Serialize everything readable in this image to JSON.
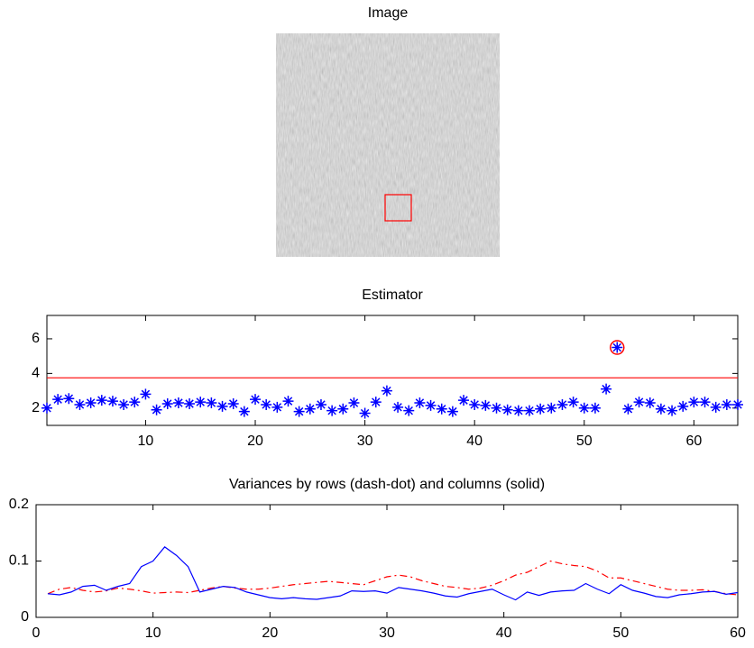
{
  "chart_data": [
    {
      "type": "image",
      "title": "Image"
    },
    {
      "type": "scatter",
      "title": "Estimator",
      "x": [
        1,
        2,
        3,
        4,
        5,
        6,
        7,
        8,
        9,
        10,
        11,
        12,
        13,
        14,
        15,
        16,
        17,
        18,
        19,
        20,
        21,
        22,
        23,
        24,
        25,
        26,
        27,
        28,
        29,
        30,
        31,
        32,
        33,
        34,
        35,
        36,
        37,
        38,
        39,
        40,
        41,
        42,
        43,
        44,
        45,
        46,
        47,
        48,
        49,
        50,
        51,
        52,
        53,
        54,
        55,
        56,
        57,
        58,
        59,
        60,
        61,
        62,
        63,
        64
      ],
      "values": [
        2.0,
        2.5,
        2.55,
        2.2,
        2.3,
        2.45,
        2.4,
        2.2,
        2.35,
        2.8,
        1.9,
        2.25,
        2.3,
        2.25,
        2.35,
        2.3,
        2.1,
        2.25,
        1.8,
        2.5,
        2.2,
        2.05,
        2.4,
        1.8,
        1.95,
        2.2,
        1.85,
        1.95,
        2.3,
        1.7,
        2.35,
        3.0,
        2.05,
        1.85,
        2.3,
        2.15,
        1.95,
        1.8,
        2.45,
        2.2,
        2.15,
        2.0,
        1.9,
        1.85,
        1.85,
        1.95,
        2.0,
        2.2,
        2.35,
        2.0,
        2.0,
        3.1,
        5.5,
        1.95,
        2.35,
        2.3,
        1.95,
        1.85,
        2.1,
        2.35,
        2.35,
        2.05,
        2.2,
        2.2
      ],
      "color": "#0000ff",
      "marker": "star",
      "threshold": 3.75,
      "threshold_color": "#ff0000",
      "highlight_x": 53,
      "xlim": [
        1,
        64
      ],
      "ylim": [
        1,
        7.35
      ],
      "xticks": [
        10,
        20,
        30,
        40,
        50,
        60
      ],
      "yticks": [
        2,
        4,
        6
      ]
    },
    {
      "type": "line",
      "title": "Variances by rows (dash-dot) and columns (solid)",
      "x": [
        1,
        2,
        3,
        4,
        5,
        6,
        7,
        8,
        9,
        10,
        11,
        12,
        13,
        14,
        15,
        16,
        17,
        18,
        19,
        20,
        21,
        22,
        23,
        24,
        25,
        26,
        27,
        28,
        29,
        30,
        31,
        32,
        33,
        34,
        35,
        36,
        37,
        38,
        39,
        40,
        41,
        42,
        43,
        44,
        45,
        46,
        47,
        48,
        49,
        50,
        51,
        52,
        53,
        54,
        55,
        56,
        57,
        58,
        59,
        60
      ],
      "series": [
        {
          "color": "#ff0000",
          "style": "dashdot",
          "values": [
            0.042,
            0.05,
            0.053,
            0.048,
            0.045,
            0.047,
            0.052,
            0.05,
            0.047,
            0.043,
            0.044,
            0.045,
            0.044,
            0.048,
            0.052,
            0.055,
            0.052,
            0.05,
            0.05,
            0.052,
            0.055,
            0.058,
            0.06,
            0.062,
            0.064,
            0.062,
            0.06,
            0.058,
            0.065,
            0.072,
            0.075,
            0.072,
            0.065,
            0.06,
            0.055,
            0.053,
            0.05,
            0.052,
            0.057,
            0.065,
            0.075,
            0.08,
            0.09,
            0.1,
            0.095,
            0.092,
            0.09,
            0.082,
            0.07,
            0.07,
            0.065,
            0.06,
            0.055,
            0.05,
            0.048,
            0.048,
            0.049,
            0.046,
            0.042,
            0.04
          ]
        },
        {
          "color": "#0000ff",
          "style": "solid",
          "values": [
            0.042,
            0.04,
            0.045,
            0.055,
            0.057,
            0.048,
            0.055,
            0.06,
            0.09,
            0.1,
            0.125,
            0.11,
            0.09,
            0.045,
            0.05,
            0.055,
            0.053,
            0.045,
            0.04,
            0.035,
            0.033,
            0.035,
            0.033,
            0.032,
            0.035,
            0.038,
            0.047,
            0.046,
            0.047,
            0.043,
            0.053,
            0.05,
            0.047,
            0.043,
            0.038,
            0.036,
            0.042,
            0.046,
            0.05,
            0.04,
            0.031,
            0.045,
            0.039,
            0.045,
            0.047,
            0.048,
            0.06,
            0.05,
            0.042,
            0.058,
            0.048,
            0.043,
            0.037,
            0.035,
            0.04,
            0.042,
            0.045,
            0.046,
            0.041,
            0.044
          ]
        }
      ],
      "xlim": [
        0,
        60
      ],
      "ylim": [
        0,
        0.2
      ],
      "xticks": [
        0,
        10,
        20,
        30,
        40,
        50,
        60
      ],
      "yticks": [
        0,
        0.1,
        0.2
      ]
    }
  ]
}
